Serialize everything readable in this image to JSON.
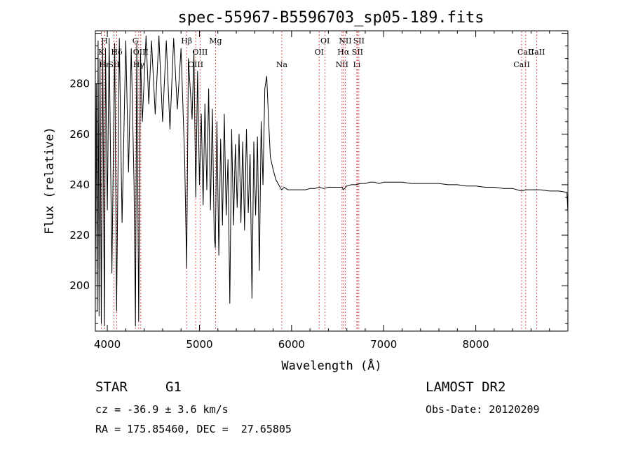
{
  "chart_data": {
    "type": "line",
    "title": "spec-55967-B5596703_sp05-189.fits",
    "xlabel": "Wavelength (Å)",
    "ylabel": "Flux (relative)",
    "xlim": [
      3870,
      9000
    ],
    "ylim": [
      182,
      301
    ],
    "xticks": [
      4000,
      5000,
      6000,
      7000,
      8000
    ],
    "yticks": [
      200,
      220,
      240,
      260,
      280
    ],
    "grid": false,
    "series": [
      {
        "values": [
          [
            3870,
            200
          ],
          [
            3880,
            280
          ],
          [
            3890,
            190
          ],
          [
            3900,
            297
          ],
          [
            3910,
            188
          ],
          [
            3920,
            290
          ],
          [
            3935,
            185
          ],
          [
            3950,
            296
          ],
          [
            3968,
            184
          ],
          [
            3980,
            294
          ],
          [
            4000,
            230
          ],
          [
            4020,
            298
          ],
          [
            4050,
            205
          ],
          [
            4080,
            296
          ],
          [
            4101,
            190
          ],
          [
            4130,
            298
          ],
          [
            4160,
            225
          ],
          [
            4200,
            297
          ],
          [
            4230,
            245
          ],
          [
            4260,
            294
          ],
          [
            4290,
            240
          ],
          [
            4305,
            184
          ],
          [
            4320,
            296
          ],
          [
            4340,
            186
          ],
          [
            4360,
            292
          ],
          [
            4380,
            265
          ],
          [
            4420,
            299
          ],
          [
            4450,
            272
          ],
          [
            4480,
            297
          ],
          [
            4520,
            268
          ],
          [
            4560,
            299
          ],
          [
            4600,
            265
          ],
          [
            4640,
            297
          ],
          [
            4680,
            262
          ],
          [
            4720,
            298
          ],
          [
            4760,
            270
          ],
          [
            4800,
            294
          ],
          [
            4840,
            250
          ],
          [
            4861,
            207
          ],
          [
            4880,
            290
          ],
          [
            4920,
            266
          ],
          [
            4940,
            293
          ],
          [
            4960,
            235
          ],
          [
            4980,
            285
          ],
          [
            5000,
            240
          ],
          [
            5020,
            268
          ],
          [
            5040,
            232
          ],
          [
            5060,
            272
          ],
          [
            5080,
            238
          ],
          [
            5100,
            278
          ],
          [
            5120,
            230
          ],
          [
            5140,
            270
          ],
          [
            5160,
            220
          ],
          [
            5172,
            215
          ],
          [
            5190,
            265
          ],
          [
            5210,
            212
          ],
          [
            5230,
            258
          ],
          [
            5250,
            224
          ],
          [
            5270,
            268
          ],
          [
            5290,
            228
          ],
          [
            5310,
            250
          ],
          [
            5330,
            193
          ],
          [
            5350,
            262
          ],
          [
            5370,
            224
          ],
          [
            5390,
            256
          ],
          [
            5410,
            231
          ],
          [
            5430,
            260
          ],
          [
            5450,
            225
          ],
          [
            5470,
            257
          ],
          [
            5490,
            222
          ],
          [
            5510,
            262
          ],
          [
            5530,
            229
          ],
          [
            5550,
            252
          ],
          [
            5570,
            195
          ],
          [
            5590,
            257
          ],
          [
            5610,
            228
          ],
          [
            5630,
            259
          ],
          [
            5650,
            206
          ],
          [
            5670,
            265
          ],
          [
            5690,
            240
          ],
          [
            5710,
            278
          ],
          [
            5730,
            283
          ],
          [
            5750,
            266
          ],
          [
            5770,
            251
          ],
          [
            5800,
            246
          ],
          [
            5830,
            242
          ],
          [
            5860,
            240
          ],
          [
            5892,
            238
          ],
          [
            5920,
            239
          ],
          [
            5960,
            238
          ],
          [
            6000,
            238
          ],
          [
            6050,
            238
          ],
          [
            6100,
            238
          ],
          [
            6150,
            238
          ],
          [
            6200,
            238.5
          ],
          [
            6250,
            238.5
          ],
          [
            6300,
            239
          ],
          [
            6350,
            238.5
          ],
          [
            6400,
            239
          ],
          [
            6450,
            239
          ],
          [
            6500,
            239
          ],
          [
            6550,
            239
          ],
          [
            6563,
            238
          ],
          [
            6600,
            239.5
          ],
          [
            6650,
            240
          ],
          [
            6700,
            240
          ],
          [
            6750,
            240.5
          ],
          [
            6800,
            240.5
          ],
          [
            6850,
            241
          ],
          [
            6900,
            241
          ],
          [
            6950,
            240.5
          ],
          [
            7000,
            241
          ],
          [
            7100,
            241
          ],
          [
            7200,
            241
          ],
          [
            7300,
            240.5
          ],
          [
            7400,
            240.5
          ],
          [
            7500,
            240.5
          ],
          [
            7600,
            240.5
          ],
          [
            7700,
            240
          ],
          [
            7800,
            240
          ],
          [
            7900,
            239.5
          ],
          [
            8000,
            239.5
          ],
          [
            8100,
            239
          ],
          [
            8200,
            239
          ],
          [
            8300,
            238.5
          ],
          [
            8400,
            238.5
          ],
          [
            8498,
            237.5
          ],
          [
            8542,
            238
          ],
          [
            8600,
            238
          ],
          [
            8662,
            238
          ],
          [
            8700,
            238
          ],
          [
            8800,
            237.5
          ],
          [
            8900,
            237.5
          ],
          [
            8990,
            237
          ],
          [
            9000,
            229
          ]
        ]
      }
    ],
    "line_markers": [
      {
        "label": "Hε",
        "x": 3970,
        "row": 3
      },
      {
        "label": "K",
        "x": 3934,
        "row": 2
      },
      {
        "label": "H",
        "x": 3969,
        "row": 1
      },
      {
        "label": "SII",
        "x": 4072,
        "row": 3
      },
      {
        "label": "Hδ",
        "x": 4102,
        "row": 2
      },
      {
        "label": "G",
        "x": 4305,
        "row": 1
      },
      {
        "label": "Hγ",
        "x": 4341,
        "row": 3
      },
      {
        "label": "OIII",
        "x": 4363,
        "row": 2
      },
      {
        "label": "Hβ",
        "x": 4861,
        "row": 1
      },
      {
        "label": "OIII",
        "x": 4959,
        "row": 3
      },
      {
        "label": "OIII",
        "x": 5007,
        "row": 2
      },
      {
        "label": "Mg",
        "x": 5175,
        "row": 1
      },
      {
        "label": "Na",
        "x": 5894,
        "row": 3
      },
      {
        "label": "OI",
        "x": 6300,
        "row": 2
      },
      {
        "label": "OI",
        "x": 6364,
        "row": 1
      },
      {
        "label": "NII",
        "x": 6548,
        "row": 3
      },
      {
        "label": "Hα",
        "x": 6563,
        "row": 2
      },
      {
        "label": "NII",
        "x": 6583,
        "row": 1
      },
      {
        "label": "Li",
        "x": 6708,
        "row": 3
      },
      {
        "label": "SII",
        "x": 6716,
        "row": 2
      },
      {
        "label": "SII",
        "x": 6731,
        "row": 1
      },
      {
        "label": "CaII",
        "x": 8498,
        "row": 3
      },
      {
        "label": "CaII",
        "x": 8542,
        "row": 2
      },
      {
        "label": "CaII",
        "x": 8662,
        "row": 2
      }
    ]
  },
  "info": {
    "class_label": "STAR",
    "subclass": "G1",
    "survey": "LAMOST DR2",
    "redshift": "cz = -36.9 ± 3.6 km/s",
    "obs_date": "Obs-Date: 20120209",
    "coords": "RA = 175.85460, DEC =  27.65805"
  },
  "colors": {
    "spectrum": "#000000",
    "line_marker": "#d11f1f",
    "frame": "#000000"
  }
}
